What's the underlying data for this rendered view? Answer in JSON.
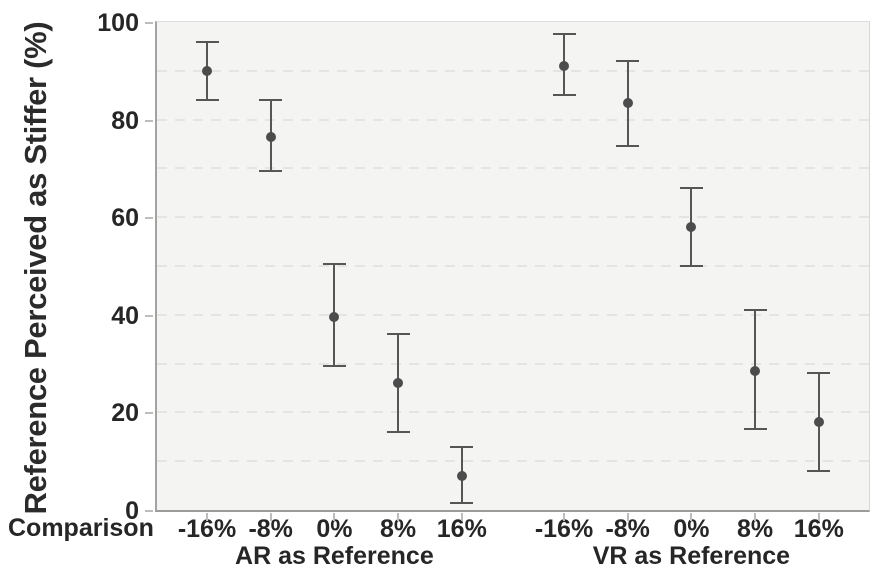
{
  "chart_data": {
    "type": "scatter",
    "subtype": "point-estimates-with-error-bars",
    "title": "",
    "ylabel": "Reference Perceived as Stiffer (%)",
    "xlabel_row_label": "Comparison",
    "ylim": [
      0,
      100
    ],
    "yticks": [
      0,
      20,
      40,
      60,
      80,
      100
    ],
    "gridline_step": 10,
    "grid": "dashed horizontal every 10",
    "legend": "none",
    "categories": [
      "-16%",
      "-8%",
      "0%",
      "8%",
      "16%"
    ],
    "groups": [
      {
        "label": "AR as Reference",
        "points": [
          {
            "x": "-16%",
            "mean": 90,
            "lo": 84,
            "hi": 96
          },
          {
            "x": "-8%",
            "mean": 76.5,
            "lo": 69.5,
            "hi": 84
          },
          {
            "x": "0%",
            "mean": 39.5,
            "lo": 29.5,
            "hi": 50.5
          },
          {
            "x": "8%",
            "mean": 26,
            "lo": 16,
            "hi": 36
          },
          {
            "x": "16%",
            "mean": 7,
            "lo": 1.5,
            "hi": 13
          }
        ]
      },
      {
        "label": "VR as Reference",
        "points": [
          {
            "x": "-16%",
            "mean": 91,
            "lo": 85,
            "hi": 97.5
          },
          {
            "x": "-8%",
            "mean": 83.5,
            "lo": 74.5,
            "hi": 92
          },
          {
            "x": "0%",
            "mean": 58,
            "lo": 50,
            "hi": 66
          },
          {
            "x": "8%",
            "mean": 28.5,
            "lo": 16.5,
            "hi": 41
          },
          {
            "x": "16%",
            "mean": 18,
            "lo": 8,
            "hi": 28
          }
        ]
      }
    ],
    "colors": {
      "marker": "#4c4c4c",
      "error_bar": "#565656",
      "plot_background": "#f4f4f2",
      "gridline": "#e4e4e1",
      "axis_line": "#a3a3a3",
      "text": "#262626"
    }
  }
}
